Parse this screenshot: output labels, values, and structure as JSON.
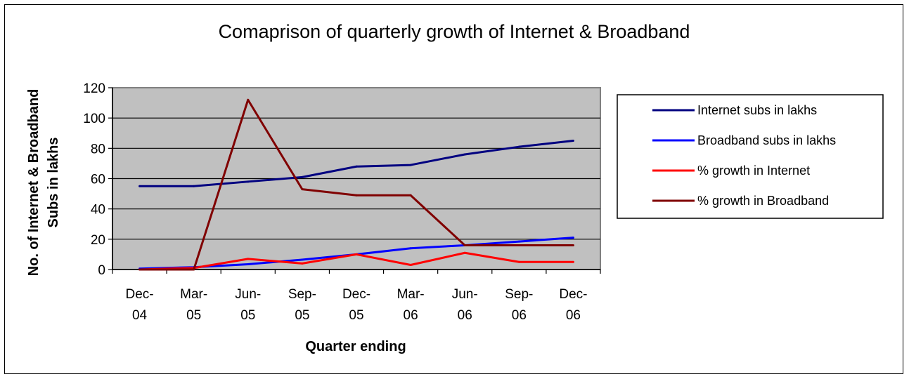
{
  "chart_data": {
    "type": "line",
    "title": "Comaprison of quarterly growth of Internet & Broadband",
    "xlabel": "Quarter ending",
    "ylabel": "No. of Internet & Broadband Subs in lakhs",
    "ylabel_lines": [
      "No. of Internet & Broadband",
      "Subs in lakhs"
    ],
    "categories": [
      "Dec-04",
      "Mar-05",
      "Jun-05",
      "Sep-05",
      "Dec-05",
      "Mar-06",
      "Jun-06",
      "Sep-06",
      "Dec-06"
    ],
    "category_lines": [
      [
        "Dec-",
        "04"
      ],
      [
        "Mar-",
        "05"
      ],
      [
        "Jun-",
        "05"
      ],
      [
        "Sep-",
        "05"
      ],
      [
        "Dec-",
        "05"
      ],
      [
        "Mar-",
        "06"
      ],
      [
        "Jun-",
        "06"
      ],
      [
        "Sep-",
        "06"
      ],
      [
        "Dec-",
        "06"
      ]
    ],
    "ylim": [
      0,
      120
    ],
    "yticks": [
      0,
      20,
      40,
      60,
      80,
      100,
      120
    ],
    "grid": true,
    "legend_position": "right",
    "plot_background": "#c0c0c0",
    "series": [
      {
        "name": "Internet subs in lakhs",
        "color": "#000080",
        "values": [
          55,
          55,
          58,
          61,
          68,
          69,
          76,
          81,
          85
        ]
      },
      {
        "name": "Broadband subs in lakhs",
        "color": "#0000ff",
        "values": [
          0.6,
          1.5,
          3.5,
          6.5,
          10,
          14,
          16,
          18.5,
          21
        ]
      },
      {
        "name": "% growth in Internet",
        "color": "#ff0000",
        "values": [
          0,
          1,
          7,
          4,
          10,
          3,
          11,
          5,
          5
        ]
      },
      {
        "name": "% growth in Broadband",
        "color": "#800000",
        "values": [
          0,
          0,
          112,
          53,
          49,
          49,
          16,
          16,
          16
        ]
      }
    ]
  }
}
